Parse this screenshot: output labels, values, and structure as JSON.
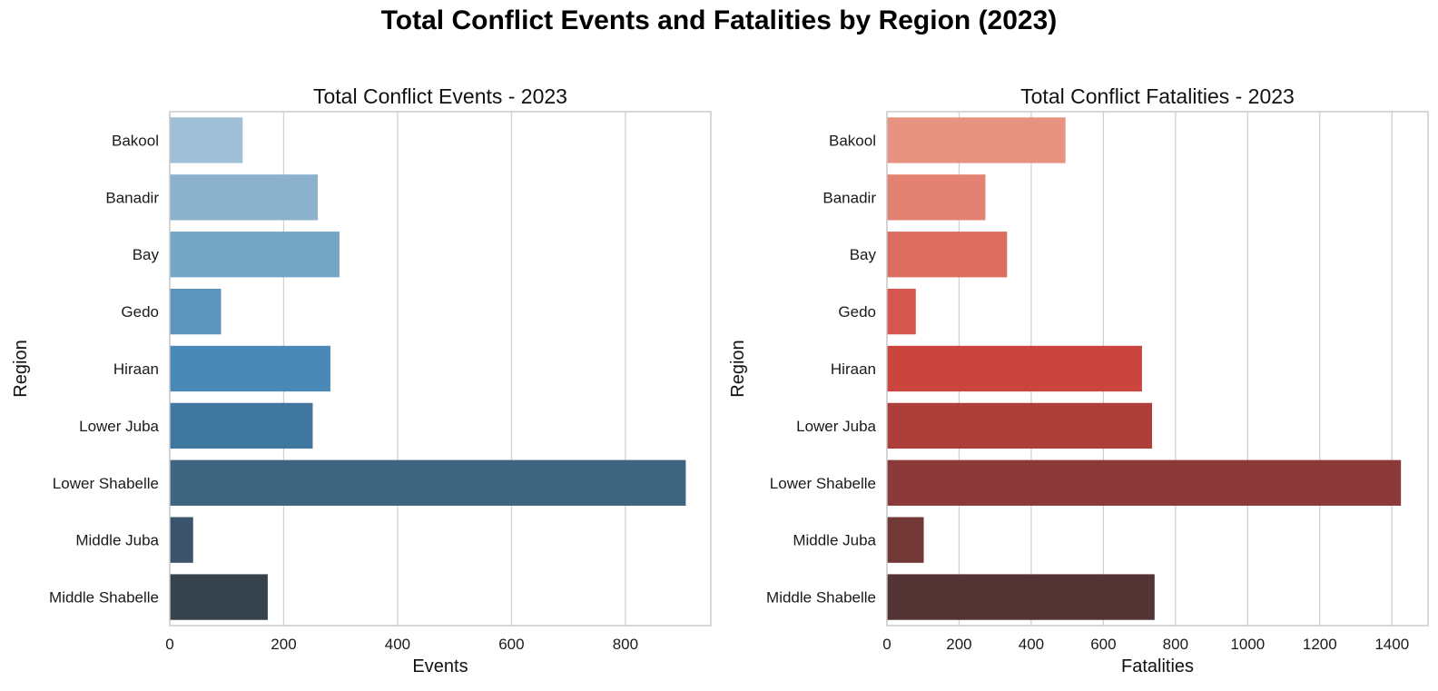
{
  "figure": {
    "title": "Total Conflict Events and Fatalities by Region (2023)"
  },
  "chart_data": [
    {
      "type": "bar",
      "orientation": "horizontal",
      "title": "Total Conflict Events - 2023",
      "xlabel": "Events",
      "ylabel": "Region",
      "xlim": [
        0,
        950
      ],
      "xticks": [
        0,
        200,
        400,
        600,
        800
      ],
      "grid": true,
      "categories": [
        "Bakool",
        "Banadir",
        "Bay",
        "Gedo",
        "Hiraan",
        "Lower Juba",
        "Lower Shabelle",
        "Middle Juba",
        "Middle Shabelle"
      ],
      "values": [
        128,
        260,
        298,
        90,
        282,
        251,
        906,
        41,
        172
      ],
      "colors": [
        "#a0c0d8",
        "#8bb1cc",
        "#74a6c6",
        "#5e95bd",
        "#4a88b7",
        "#3f77a0",
        "#3e647f",
        "#3b536b",
        "#36434d"
      ]
    },
    {
      "type": "bar",
      "orientation": "horizontal",
      "title": "Total Conflict Fatalities - 2023",
      "xlabel": "Fatalities",
      "ylabel": "Region",
      "xlim": [
        0,
        1500
      ],
      "xticks": [
        0,
        200,
        400,
        600,
        800,
        1000,
        1200,
        1400
      ],
      "grid": true,
      "categories": [
        "Bakool",
        "Banadir",
        "Bay",
        "Gedo",
        "Hiraan",
        "Lower Juba",
        "Lower Shabelle",
        "Middle Juba",
        "Middle Shabelle"
      ],
      "values": [
        495,
        273,
        333,
        80,
        707,
        735,
        1425,
        102,
        742
      ],
      "colors": [
        "#e89282",
        "#e38172",
        "#dd6d61",
        "#d5574f",
        "#cb443d",
        "#ad3e3a",
        "#8c3a39",
        "#713836",
        "#543335"
      ]
    }
  ]
}
